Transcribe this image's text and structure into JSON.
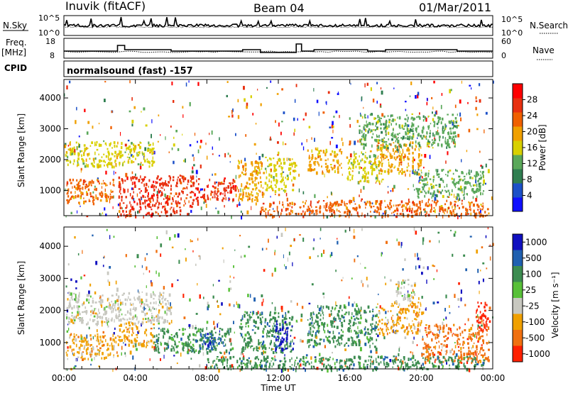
{
  "header": {
    "station": "Inuvik (fitACF)",
    "beam": "Beam 04",
    "date": "01/Mar/2011"
  },
  "noise_panel": {
    "left_label": "N.Sky",
    "right_label": "N.Search",
    "y_top": "10^5",
    "y_bottom": "10^0",
    "r_top": "10^5",
    "r_bottom": "10^0"
  },
  "freq_panel": {
    "left_label_1": "Freq.",
    "left_label_2": "[MHz]",
    "right_label": "Nave",
    "y_top": "18",
    "y_bottom": "8",
    "r_top": "60",
    "r_bottom": "0"
  },
  "cpid": {
    "label": "CPID",
    "mode": "normalsound (fast) -157"
  },
  "x_axis": {
    "label": "Time UT",
    "ticks": [
      "00:00",
      "04:00",
      "08:00",
      "12:00",
      "16:00",
      "20:00",
      "00:00"
    ]
  },
  "colors": {
    "power_scale": [
      "#1010ff",
      "#1c50c8",
      "#2f7e50",
      "#5aa85a",
      "#d8d000",
      "#f0a000",
      "#f06000",
      "#e83010",
      "#ff0000"
    ],
    "velocity_scale": [
      "#1010c0",
      "#2060b0",
      "#3c8c50",
      "#58c038",
      "#c8c8c0",
      "#f0a000",
      "#f07010",
      "#ff2000"
    ]
  },
  "chart_data": [
    {
      "type": "heatmap",
      "name": "power",
      "xlabel": "Time UT",
      "ylabel": "Slant Range [km]",
      "y_ticks": [
        "1000",
        "2000",
        "3000",
        "4000"
      ],
      "colorbar_label": "Power [dB]",
      "colorbar_ticks": [
        "4",
        "8",
        "12",
        "16",
        "20",
        "24",
        "28"
      ],
      "xlim_hours": [
        0,
        24
      ],
      "ylim_km": [
        180,
        4600
      ],
      "blobs": [
        {
          "t0": 0.1,
          "t1": 2.8,
          "r0": 600,
          "r1": 1400,
          "v": 24
        },
        {
          "t0": 3.0,
          "t1": 7.2,
          "r0": 500,
          "r1": 1500,
          "v": 28
        },
        {
          "t0": 7.2,
          "t1": 9.6,
          "r0": 700,
          "r1": 1400,
          "v": 28
        },
        {
          "t0": 3.0,
          "t1": 6.5,
          "r0": 180,
          "r1": 500,
          "v": 28
        },
        {
          "t0": 9.6,
          "t1": 11.2,
          "r0": 700,
          "r1": 2000,
          "v": 20
        },
        {
          "t0": 11.2,
          "t1": 13.0,
          "r0": 1000,
          "r1": 2100,
          "v": 16
        },
        {
          "t0": 13.6,
          "t1": 15.5,
          "r0": 1600,
          "r1": 2400,
          "v": 20
        },
        {
          "t0": 15.8,
          "t1": 17.8,
          "r0": 1300,
          "r1": 2300,
          "v": 16
        },
        {
          "t0": 17.5,
          "t1": 20.0,
          "r0": 1500,
          "r1": 2600,
          "v": 20
        },
        {
          "t0": 19.5,
          "t1": 23.5,
          "r0": 800,
          "r1": 1700,
          "v": 12
        },
        {
          "t0": 11.0,
          "t1": 23.8,
          "r0": 180,
          "r1": 700,
          "v": 24
        },
        {
          "t0": 0.1,
          "t1": 5.0,
          "r0": 1800,
          "r1": 2600,
          "v": 16
        },
        {
          "t0": 16.5,
          "t1": 22.0,
          "r0": 2400,
          "r1": 3500,
          "v": 12
        }
      ]
    },
    {
      "type": "heatmap",
      "name": "velocity",
      "xlabel": "Time UT",
      "ylabel": "Slant Range [km]",
      "y_ticks": [
        "1000",
        "2000",
        "3000",
        "4000"
      ],
      "colorbar_label": "Velocity [m s⁻¹]",
      "colorbar_ticks": [
        "1000",
        "500",
        "100",
        "25",
        "-25",
        "-100",
        "-500",
        "-1000"
      ],
      "xlim_hours": [
        0,
        24
      ],
      "ylim_km": [
        180,
        4600
      ],
      "blobs": [
        {
          "t0": 0.1,
          "t1": 3.0,
          "r0": 500,
          "r1": 1300,
          "v": -100
        },
        {
          "t0": 3.0,
          "t1": 5.0,
          "r0": 900,
          "r1": 1700,
          "v": -100
        },
        {
          "t0": 5.0,
          "t1": 9.4,
          "r0": 700,
          "r1": 1500,
          "v": 100
        },
        {
          "t0": 7.5,
          "t1": 9.0,
          "r0": 800,
          "r1": 1300,
          "v": 500
        },
        {
          "t0": 9.8,
          "t1": 12.8,
          "r0": 700,
          "r1": 2000,
          "v": 100
        },
        {
          "t0": 11.8,
          "t1": 12.8,
          "r0": 800,
          "r1": 1700,
          "v": 1000
        },
        {
          "t0": 13.6,
          "t1": 17.5,
          "r0": 900,
          "r1": 2200,
          "v": 100
        },
        {
          "t0": 0.1,
          "t1": 6.0,
          "r0": 1600,
          "r1": 2600,
          "v": 25
        },
        {
          "t0": 17.5,
          "t1": 20.0,
          "r0": 1300,
          "r1": 2300,
          "v": -100
        },
        {
          "t0": 18.5,
          "t1": 19.6,
          "r0": 2300,
          "r1": 3000,
          "v": 25
        },
        {
          "t0": 20.0,
          "t1": 23.8,
          "r0": 400,
          "r1": 1600,
          "v": -500
        },
        {
          "t0": 23.0,
          "t1": 23.8,
          "r0": 1400,
          "r1": 2300,
          "v": -1000
        },
        {
          "t0": 8.0,
          "t1": 23.5,
          "r0": 180,
          "r1": 600,
          "v": 100
        }
      ]
    }
  ]
}
